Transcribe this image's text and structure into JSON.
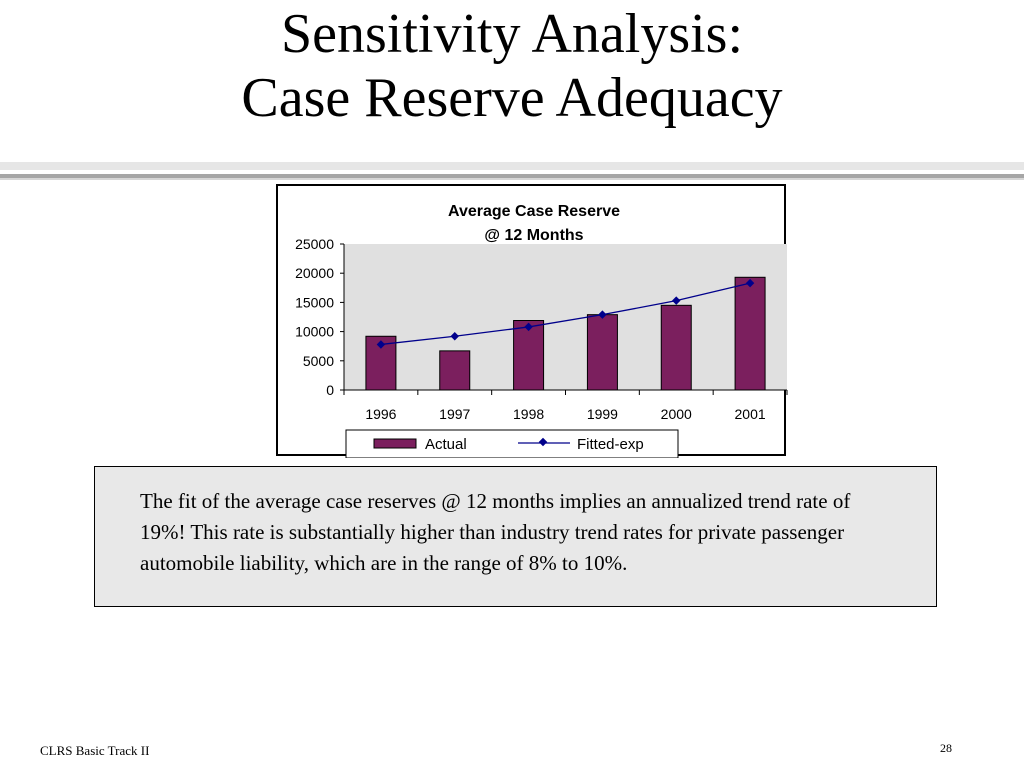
{
  "slide": {
    "title_line1": "Sensitivity Analysis:",
    "title_line2": "Case Reserve Adequacy",
    "note": "The fit of the average case reserves @ 12 months implies an annualized trend rate of 19%!  This rate is substantially higher than industry trend rates for private passenger automobile liability, which are in the range of 8% to 10%.",
    "footer_left": "CLRS Basic Track II",
    "page_number": "28"
  },
  "colors": {
    "bar_fill": "#7b1f5e",
    "line": "#00008b",
    "plot_bg": "#e0e0e0",
    "note_bg": "#e8e8e8"
  },
  "chart_data": {
    "type": "bar",
    "title_line1": "Average Case Reserve",
    "title_line2": "@ 12 Months",
    "categories": [
      "1996",
      "1997",
      "1998",
      "1999",
      "2000",
      "2001"
    ],
    "ylim": [
      0,
      25000
    ],
    "yticks": [
      0,
      5000,
      10000,
      15000,
      20000,
      25000
    ],
    "series": [
      {
        "name": "Actual",
        "kind": "bar",
        "values": [
          9200,
          6700,
          11900,
          12900,
          14500,
          19300
        ]
      },
      {
        "name": "Fitted-exp",
        "kind": "line",
        "marker": "diamond",
        "values": [
          7800,
          9200,
          10800,
          12900,
          15300,
          18300
        ]
      }
    ],
    "grid": false,
    "legend_position": "bottom"
  }
}
